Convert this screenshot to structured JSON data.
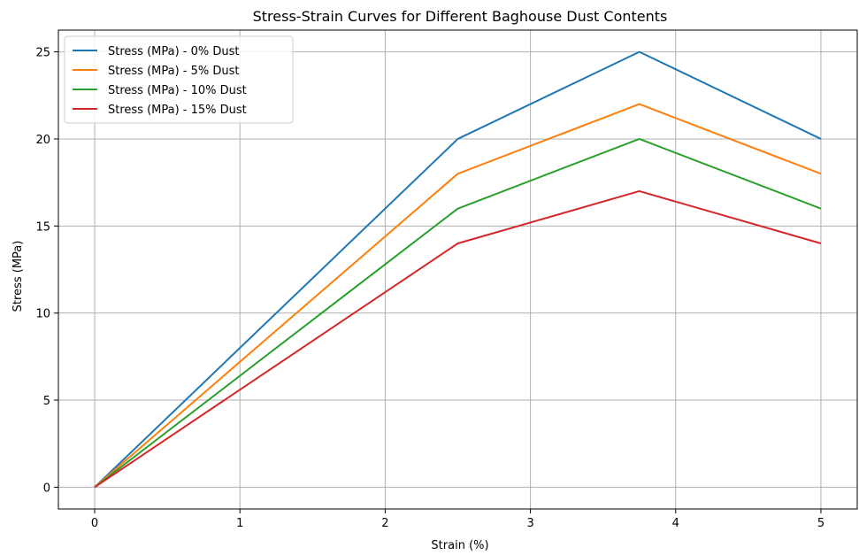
{
  "chart_data": {
    "type": "line",
    "title": "Stress-Strain Curves for Different Baghouse Dust Contents",
    "xlabel": "Strain (%)",
    "ylabel": "Stress (MPa)",
    "xlim": [
      -0.25,
      5.25
    ],
    "ylim": [
      -1.25,
      26.25
    ],
    "xticks": [
      0,
      1,
      2,
      3,
      4,
      5
    ],
    "yticks": [
      0,
      5,
      10,
      15,
      20,
      25
    ],
    "xtick_labels": [
      "0",
      "1",
      "2",
      "3",
      "4",
      "5"
    ],
    "ytick_labels": [
      "0",
      "5",
      "10",
      "15",
      "20",
      "25"
    ],
    "grid": true,
    "legend_position": "upper-left",
    "x": [
      0,
      2.5,
      3.75,
      5
    ],
    "series": [
      {
        "name": "Stress (MPa) - 0% Dust",
        "color": "#1f77b4",
        "values": [
          0,
          20,
          25,
          20
        ]
      },
      {
        "name": "Stress (MPa) - 5% Dust",
        "color": "#ff7f0e",
        "values": [
          0,
          18,
          22,
          18
        ]
      },
      {
        "name": "Stress (MPa) - 10% Dust",
        "color": "#2ca02c",
        "values": [
          0,
          16,
          20,
          16
        ]
      },
      {
        "name": "Stress (MPa) - 15% Dust",
        "color": "#d62728",
        "values": [
          0,
          14,
          17,
          14
        ]
      }
    ]
  }
}
